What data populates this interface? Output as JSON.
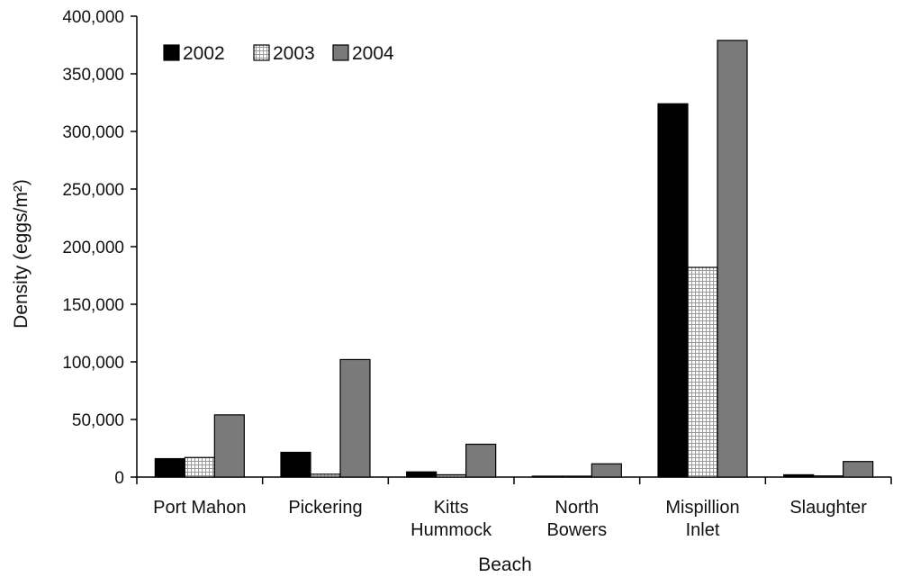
{
  "chart_data": {
    "type": "bar",
    "title": "",
    "xlabel": "Beach",
    "ylabel": "Density (eggs/m²)",
    "ylim": [
      0,
      400000
    ],
    "yticks": [
      "0",
      "50,000",
      "100,000",
      "150,000",
      "200,000",
      "250,000",
      "300,000",
      "350,000",
      "400,000"
    ],
    "yticks_values": [
      0,
      50000,
      100000,
      150000,
      200000,
      250000,
      300000,
      350000,
      400000
    ],
    "categories": [
      [
        "Port Mahon"
      ],
      [
        "Pickering"
      ],
      [
        "Kitts",
        "Hummock"
      ],
      [
        "North",
        "Bowers"
      ],
      [
        "Mispillion",
        "Inlet"
      ],
      [
        "Slaughter"
      ]
    ],
    "series": [
      {
        "name": "2002",
        "color": "#000000",
        "pattern": "solid",
        "values": [
          16000,
          21500,
          4500,
          800,
          324000,
          2000
        ]
      },
      {
        "name": "2003",
        "color": "#ffffff",
        "pattern": "grid",
        "values": [
          17000,
          2500,
          2000,
          800,
          182000,
          1000
        ]
      },
      {
        "name": "2004",
        "color": "#7a7a7a",
        "pattern": "solid",
        "values": [
          54000,
          102000,
          28500,
          11500,
          379000,
          13500
        ]
      }
    ],
    "legend_position": "top-left",
    "grid": false
  }
}
